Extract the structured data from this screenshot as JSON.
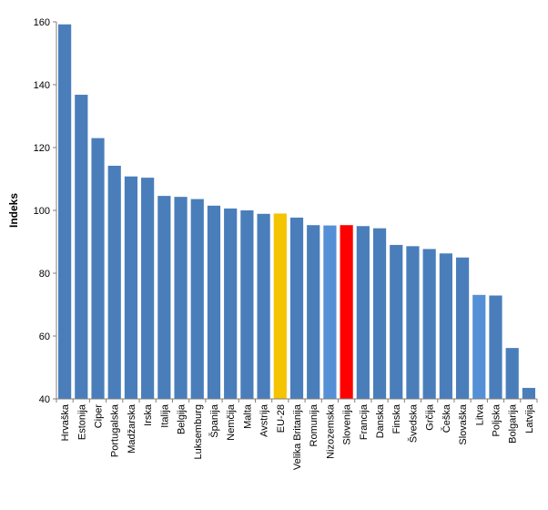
{
  "chart_data": {
    "type": "bar",
    "title": "",
    "xlabel": "",
    "ylabel": "Indeks",
    "ylim": [
      40,
      160
    ],
    "yticks": [
      40,
      60,
      80,
      100,
      120,
      140,
      160
    ],
    "grid": false,
    "legend": "none",
    "categories": [
      "Hrvaška",
      "Estonija",
      "Ciper",
      "Portugalska",
      "Madžarska",
      "Irska",
      "Italija",
      "Belgija",
      "Luksemburg",
      "Španija",
      "Nemčija",
      "Malta",
      "Avstrija",
      "EU-28",
      "Velika Britanija",
      "Romunija",
      "Nizozemska",
      "Slovenija",
      "Francija",
      "Danska",
      "Finska",
      "Švedska",
      "Grčija",
      "Češka",
      "Slovaška",
      "Litva",
      "Poljska",
      "Bolgarija",
      "Latvija"
    ],
    "values": [
      159.2,
      136.8,
      123.0,
      114.2,
      110.8,
      110.4,
      104.6,
      104.3,
      103.6,
      101.5,
      100.6,
      100.0,
      98.9,
      99.0,
      97.7,
      95.3,
      95.2,
      95.3,
      95.0,
      94.3,
      89.0,
      88.6,
      87.7,
      86.3,
      85.0,
      73.1,
      72.9,
      56.2,
      43.5
    ],
    "colors": {
      "default": "#4a7ebb",
      "highlight_eu": "#f5c400",
      "highlight_si": "#ff0000",
      "lighter": "#5590d6"
    },
    "bar_colors": [
      "default",
      "default",
      "default",
      "default",
      "default",
      "default",
      "default",
      "default",
      "default",
      "default",
      "default",
      "default",
      "default",
      "highlight_eu",
      "default",
      "default",
      "lighter",
      "highlight_si",
      "default",
      "default",
      "default",
      "default",
      "default",
      "default",
      "default",
      "lighter",
      "default",
      "default",
      "default"
    ]
  }
}
